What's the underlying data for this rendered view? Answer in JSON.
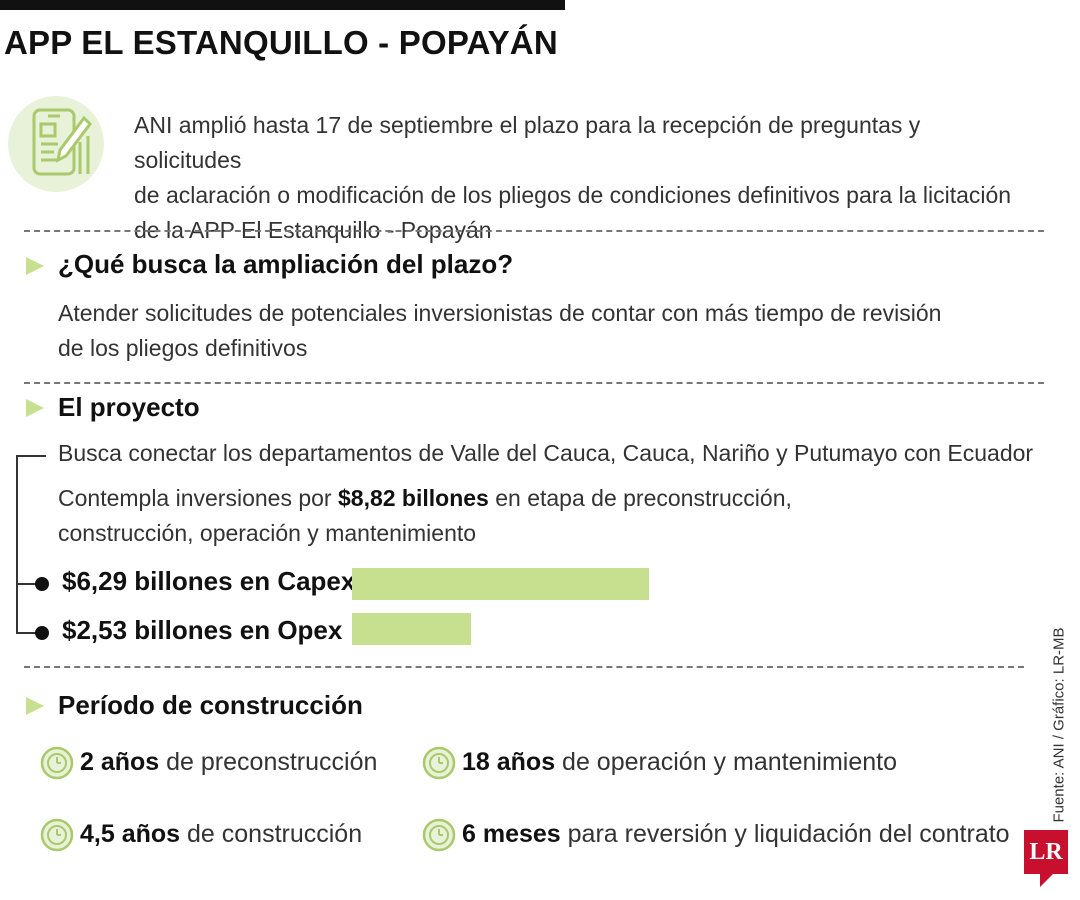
{
  "title": "APP EL ESTANQUILLO - POPAYÁN",
  "intro": {
    "icon": "document-pen-icon",
    "lines": [
      "ANI amplió hasta 17 de septiembre el plazo para la recepción de preguntas y solicitudes",
      "de aclaración o modificación de los pliegos de condiciones definitivos para la licitación",
      "de la APP El Estanquillo - Popayán"
    ]
  },
  "section1": {
    "heading": "¿Qué busca la ampliación del plazo?",
    "lines": [
      "Atender solicitudes de potenciales inversionistas de contar con más tiempo de revisión",
      "de los pliegos definitivos"
    ]
  },
  "section2": {
    "heading": "El proyecto",
    "line1": "Busca conectar los departamentos de Valle del Cauca, Cauca, Nariño y Putumayo con Ecuador",
    "line2_pre": "Contempla inversiones por ",
    "line2_bold": "$8,82 billones",
    "line2_post": " en etapa de preconstrucción,",
    "line3": "construcción, operación y mantenimiento",
    "bars": [
      {
        "label": "$6,29 billones en Capex",
        "value": 6.29
      },
      {
        "label": "$2,53 billones en Opex",
        "value": 2.53
      }
    ]
  },
  "section3": {
    "heading": "Período de construcción",
    "icon": "timer-icon",
    "items": [
      {
        "bold": "2 años",
        "text": " de preconstrucción"
      },
      {
        "bold": "18 años",
        "text": " de operación y mantenimiento"
      },
      {
        "bold": "4,5 años",
        "text": " de construcción"
      },
      {
        "bold": "6 meses",
        "text": " para reversión y liquidación del contrato"
      }
    ]
  },
  "source": "Fuente: ANI / Gráfico: LR-MB",
  "logo": "LR",
  "colors": {
    "accent": "#c7e08f",
    "accent_dark": "#a9c96a",
    "logo": "#c8102e"
  }
}
